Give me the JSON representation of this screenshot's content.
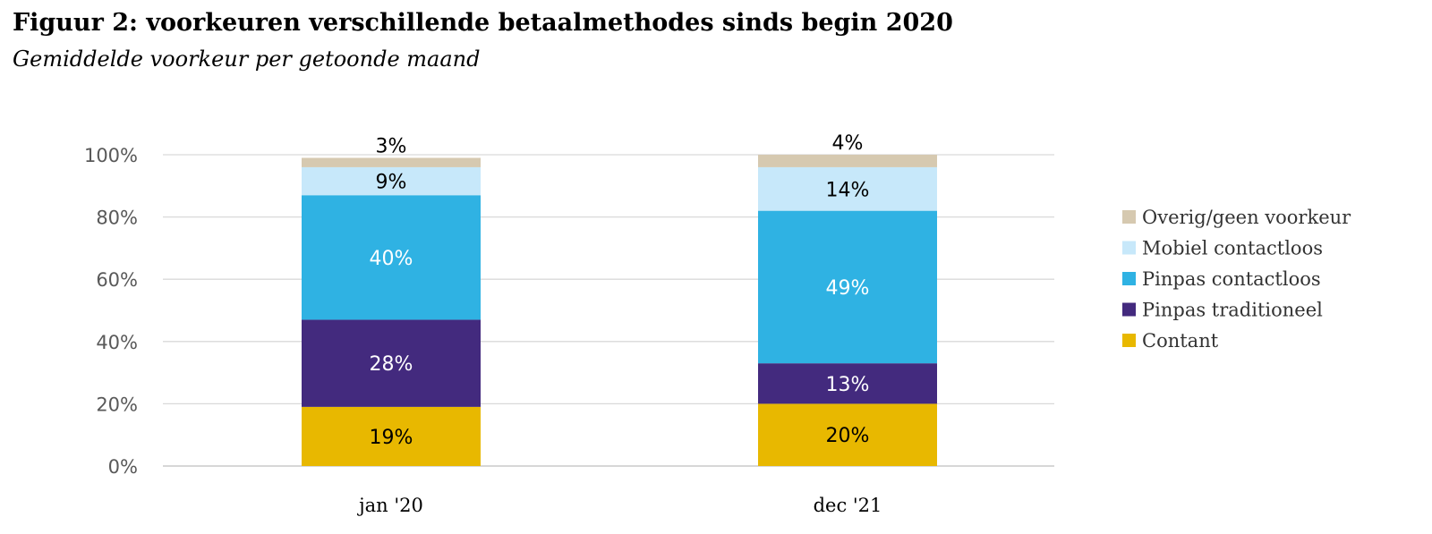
{
  "header": {
    "title": "Figuur 2: voorkeuren verschillende betaalmethodes sinds begin 2020",
    "subtitle": "Gemiddelde voorkeur per getoonde maand"
  },
  "chart_data": {
    "type": "bar",
    "stacked": true,
    "categories": [
      "jan '20",
      "dec '21"
    ],
    "series": [
      {
        "name": "Contant",
        "values": [
          19,
          20
        ],
        "labels": [
          "19%",
          "20%"
        ],
        "color": "#E8B800",
        "label_color": "#000000"
      },
      {
        "name": "Pinpas traditioneel",
        "values": [
          28,
          13
        ],
        "labels": [
          "28%",
          "13%"
        ],
        "color": "#432A7E",
        "label_color": "#ffffff"
      },
      {
        "name": "Pinpas contactloos",
        "values": [
          40,
          49
        ],
        "labels": [
          "40%",
          "49%"
        ],
        "color": "#2FB2E3",
        "label_color": "#ffffff"
      },
      {
        "name": "Mobiel contactloos",
        "values": [
          9,
          14
        ],
        "labels": [
          "9%",
          "14%"
        ],
        "color": "#C7E8FA",
        "label_color": "#000000"
      },
      {
        "name": "Overig/geen voorkeur",
        "values": [
          3,
          4
        ],
        "labels": [
          "3%",
          "4%"
        ],
        "color": "#D6C9B0",
        "label_color": "#000000"
      }
    ],
    "y_ticks": [
      "0%",
      "20%",
      "40%",
      "60%",
      "80%",
      "100%"
    ],
    "ylim": [
      0,
      100
    ],
    "grid": true,
    "legend_position": "right"
  }
}
